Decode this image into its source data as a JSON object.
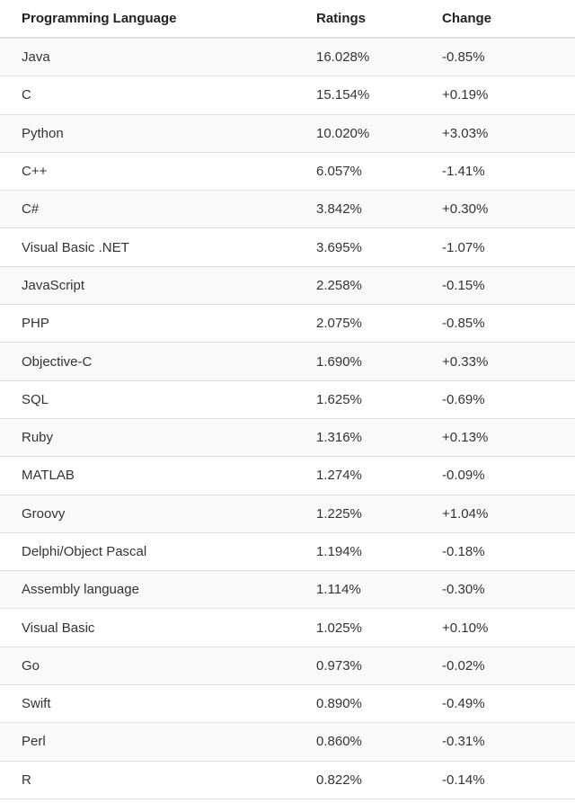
{
  "table": {
    "headers": [
      "Programming Language",
      "Ratings",
      "Change"
    ],
    "rows": [
      {
        "language": "Java",
        "rating": "16.028%",
        "change": "-0.85%"
      },
      {
        "language": "C",
        "rating": "15.154%",
        "change": "+0.19%"
      },
      {
        "language": "Python",
        "rating": "10.020%",
        "change": "+3.03%"
      },
      {
        "language": "C++",
        "rating": "6.057%",
        "change": "-1.41%"
      },
      {
        "language": "C#",
        "rating": "3.842%",
        "change": "+0.30%"
      },
      {
        "language": "Visual Basic .NET",
        "rating": "3.695%",
        "change": "-1.07%"
      },
      {
        "language": "JavaScript",
        "rating": "2.258%",
        "change": "-0.15%"
      },
      {
        "language": "PHP",
        "rating": "2.075%",
        "change": "-0.85%"
      },
      {
        "language": "Objective-C",
        "rating": "1.690%",
        "change": "+0.33%"
      },
      {
        "language": "SQL",
        "rating": "1.625%",
        "change": "-0.69%"
      },
      {
        "language": "Ruby",
        "rating": "1.316%",
        "change": "+0.13%"
      },
      {
        "language": "MATLAB",
        "rating": "1.274%",
        "change": "-0.09%"
      },
      {
        "language": "Groovy",
        "rating": "1.225%",
        "change": "+1.04%"
      },
      {
        "language": "Delphi/Object Pascal",
        "rating": "1.194%",
        "change": "-0.18%"
      },
      {
        "language": "Assembly language",
        "rating": "1.114%",
        "change": "-0.30%"
      },
      {
        "language": "Visual Basic",
        "rating": "1.025%",
        "change": "+0.10%"
      },
      {
        "language": "Go",
        "rating": "0.973%",
        "change": "-0.02%"
      },
      {
        "language": "Swift",
        "rating": "0.890%",
        "change": "-0.49%"
      },
      {
        "language": "Perl",
        "rating": "0.860%",
        "change": "-0.31%"
      },
      {
        "language": "R",
        "rating": "0.822%",
        "change": "-0.14%"
      }
    ]
  },
  "colors": {
    "header_text": "#222222",
    "cell_text": "#333333",
    "stripe": "#f9f9f9",
    "border": "#dddddd"
  }
}
